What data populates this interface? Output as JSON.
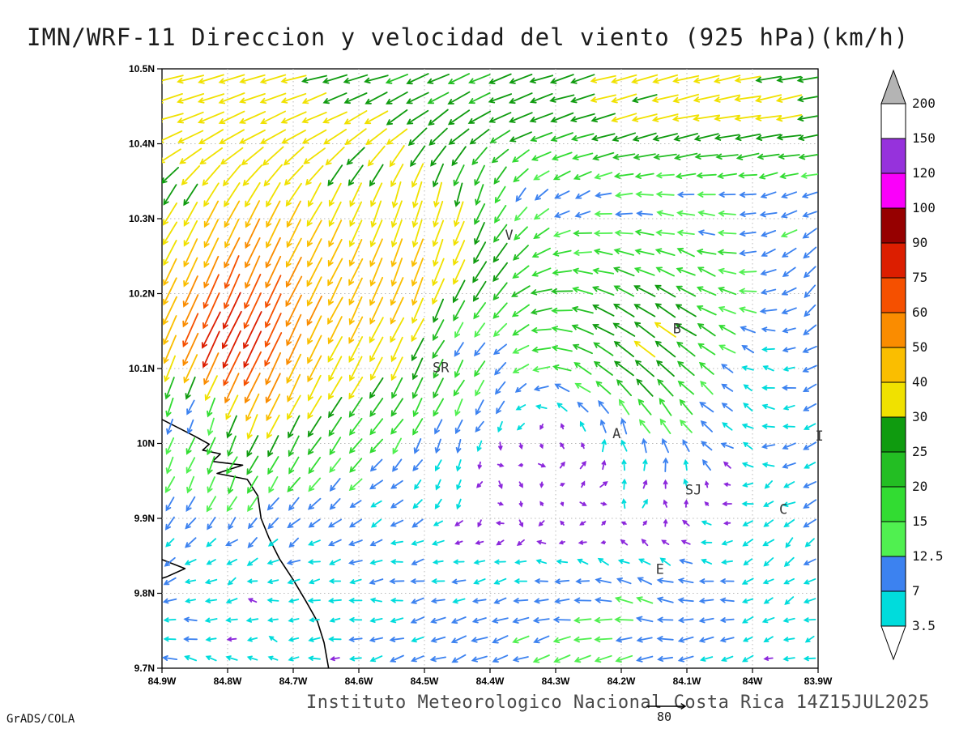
{
  "title": "IMN/WRF-11 Direccion y velocidad del viento (925 hPa)(km/h)",
  "credit": "GrADS/COLA",
  "footer": {
    "annotation": "Instituto Meteorologico Nacional Costa Rica 14Z15JUL2025",
    "reference_vector": {
      "label": "80",
      "speed": 80
    }
  },
  "chart_data": {
    "type": "vector_field",
    "variable": "wind direction and speed",
    "level": "925 hPa",
    "units": "km/h",
    "model": "IMN/WRF-11",
    "valid_time": "14Z15JUL2025",
    "x_axis": {
      "values": [
        -84.9,
        -84.8,
        -84.7,
        -84.6,
        -84.5,
        -84.4,
        -84.3,
        -84.2,
        -84.1,
        -84.0,
        -83.9
      ],
      "ticks": [
        "84.9W",
        "84.8W",
        "84.7W",
        "84.6W",
        "84.5W",
        "84.4W",
        "84.3W",
        "84.2W",
        "84.1W",
        "84W",
        "83.9W"
      ],
      "lon_min": -84.9,
      "lon_max": -83.9,
      "grid_interval": 0.1
    },
    "y_axis": {
      "values": [
        10.5,
        10.4,
        10.3,
        10.2,
        10.1,
        10.0,
        9.9,
        9.8,
        9.7
      ],
      "ticks": [
        "10.5N",
        "10.4N",
        "10.3N",
        "10.2N",
        "10.1N",
        "10N",
        "9.9N",
        "9.8N",
        "9.7N"
      ],
      "lat_min": 9.7,
      "lat_max": 10.5,
      "grid_interval": 0.1
    },
    "grid": "dotted",
    "colorbar": {
      "levels": [
        200,
        150,
        120,
        100,
        90,
        75,
        60,
        50,
        40,
        30,
        25,
        20,
        15,
        12.5,
        7,
        3.5
      ],
      "labels": [
        "200",
        "150",
        "120",
        "100",
        "90",
        "75",
        "60",
        "50",
        "40",
        "30",
        "25",
        "20",
        "15",
        "12.5",
        "7",
        "3.5"
      ],
      "above_max_color": "#b4b4b4",
      "box_colors": [
        "#ffffff",
        "#9632dc",
        "#fa00fa",
        "#960000",
        "#dc1e00",
        "#f55000",
        "#fa8c00",
        "#fabe00",
        "#f0e100",
        "#0f9b0f",
        "#23be23",
        "#32dc32",
        "#50f050",
        "#3c82f0",
        "#00dcdc"
      ],
      "below_min_color": "#ffffff",
      "submin_arrow_color": "#8c28dc",
      "position": "right"
    },
    "stations": [
      {
        "label": "V",
        "lon": -84.371,
        "lat": 10.272
      },
      {
        "label": "B",
        "lon": -84.115,
        "lat": 10.147
      },
      {
        "label": "SR",
        "lon": -84.475,
        "lat": 10.095
      },
      {
        "label": "A",
        "lon": -84.207,
        "lat": 10.007
      },
      {
        "label": "SJ",
        "lon": -84.09,
        "lat": 9.932
      },
      {
        "label": "C",
        "lon": -83.953,
        "lat": 9.906
      },
      {
        "label": "E",
        "lon": -84.141,
        "lat": 9.826
      },
      {
        "label": "I",
        "lon": -83.898,
        "lat": 10.004
      }
    ],
    "coastlines": [
      [
        [
          -84.9,
          10.032
        ],
        [
          -84.851,
          10.01
        ],
        [
          -84.828,
          9.999
        ],
        [
          -84.838,
          9.991
        ],
        [
          -84.811,
          9.986
        ],
        [
          -84.823,
          9.976
        ],
        [
          -84.777,
          9.971
        ],
        [
          -84.816,
          9.96
        ],
        [
          -84.77,
          9.952
        ],
        [
          -84.754,
          9.93
        ],
        [
          -84.749,
          9.9
        ],
        [
          -84.737,
          9.874
        ],
        [
          -84.721,
          9.846
        ],
        [
          -84.7,
          9.818
        ],
        [
          -84.681,
          9.79
        ],
        [
          -84.663,
          9.762
        ],
        [
          -84.653,
          9.734
        ],
        [
          -84.646,
          9.7
        ]
      ],
      [
        [
          -84.9,
          9.845
        ],
        [
          -84.865,
          9.833
        ],
        [
          -84.893,
          9.822
        ],
        [
          -84.9,
          9.82
        ]
      ]
    ],
    "flow_summary": [
      "strong green easterlies (20-30 km/h) along the northern edge above 10.35N",
      "yellow-orange-red southward jet (40-85 km/h) in the northwest near 84.75W/10.1-10.3N",
      "northerly (downward) cyan-yellow flow near 84.5W/10.2-10.35N",
      "weak cyan/blue easterlies (4-12 km/h) over the south and east",
      "very light winds (<3.5 km/h, tiny purple arrows) scattered in the central-east",
      "green west-northwest flow (15-30 km/h) near stations B, A and SJ"
    ],
    "wind_field": {
      "grid": {
        "nx": 32,
        "ny": 31
      },
      "base": {
        "u": -8,
        "v": -2,
        "wave_u": 4,
        "wave_v": 3
      },
      "noise": 3.5,
      "arrow_scale": 5.5,
      "head_len": 6,
      "features": [
        {
          "name": "northern-easterly-jet",
          "type": "band",
          "from": 0.78,
          "to": 0.92,
          "du": -19,
          "dv": -3
        },
        {
          "name": "northwest-southward-jet",
          "type": "gauss",
          "s": 0.12,
          "t": 0.62,
          "sw": 0.18,
          "tw": 0.26,
          "du": -12,
          "dv": -48
        },
        {
          "name": "northwest-jet-core",
          "type": "gauss",
          "s": 0.1,
          "t": 0.54,
          "sw": 0.08,
          "tw": 0.09,
          "du": -18,
          "dv": -28
        },
        {
          "name": "central-northerlies",
          "type": "gauss",
          "s": 0.4,
          "t": 0.7,
          "sw": 0.13,
          "tw": 0.22,
          "du": 0,
          "dv": -26
        },
        {
          "name": "east-ridge-flow",
          "type": "gauss",
          "s": 0.77,
          "t": 0.5,
          "sw": 0.17,
          "tw": 0.14,
          "du": -17,
          "dv": 9
        },
        {
          "name": "southeast-flow",
          "type": "gauss",
          "s": 0.72,
          "t": 0.13,
          "sw": 0.15,
          "tw": 0.1,
          "du": -10,
          "dv": 7
        },
        {
          "name": "right-edge-northerlies",
          "type": "gauss",
          "s": 0.97,
          "t": 0.62,
          "sw": 0.1,
          "tw": 0.2,
          "du": 4,
          "dv": -10
        },
        {
          "name": "center-eddy",
          "type": "eddy",
          "s": 0.6,
          "t": 0.46,
          "r": 0.22,
          "omega": 30
        },
        {
          "name": "calm-zone-central",
          "type": "damp",
          "s": 0.57,
          "t": 0.3,
          "sw": 0.2,
          "tw": 0.16,
          "factor": 0.85
        },
        {
          "name": "calm-zone-east",
          "type": "damp",
          "s": 0.9,
          "t": 0.47,
          "sw": 0.1,
          "tw": 0.12,
          "factor": 0.7
        },
        {
          "name": "calm-zone-west",
          "type": "damp",
          "s": 0.05,
          "t": 0.42,
          "sw": 0.06,
          "tw": 0.07,
          "factor": 0.7
        },
        {
          "name": "calm-spot-center",
          "type": "damp",
          "s": 0.47,
          "t": 0.55,
          "sw": 0.07,
          "tw": 0.07,
          "factor": 0.6
        }
      ]
    }
  }
}
